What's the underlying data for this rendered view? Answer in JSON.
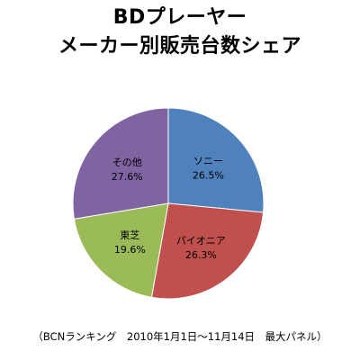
{
  "chart_data": {
    "type": "pie",
    "title": [
      "BDプレーヤー",
      "メーカー別販売台数シェア"
    ],
    "categories": [
      "ソニー",
      "パイオニア",
      "東芝",
      "その他"
    ],
    "values": [
      26.5,
      26.3,
      19.6,
      27.6
    ],
    "value_labels": [
      "26.5%",
      "26.3%",
      "19.6%",
      "27.6%"
    ],
    "colors": [
      "#4F81BD",
      "#C0504D",
      "#9BBB59",
      "#8064A2"
    ],
    "start": "12 o'clock",
    "direction": "clockwise",
    "legend": "none",
    "footnote": "（BCNランキング　2010年1月1日～11月14日　最大パネル）"
  }
}
